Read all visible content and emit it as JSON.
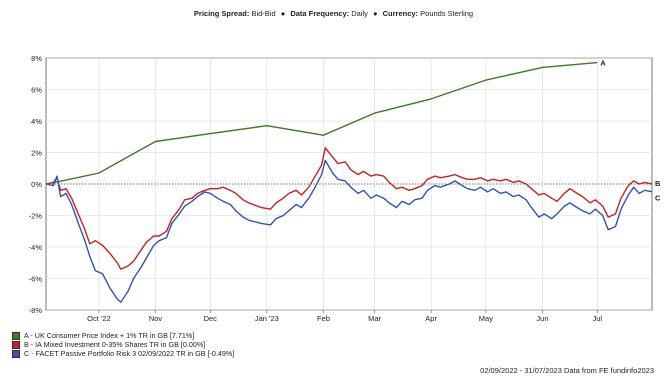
{
  "header": {
    "pricing_label": "Pricing Spread:",
    "pricing_value": "Bid-Bid",
    "frequency_label": "Data Frequency:",
    "frequency_value": "Daily",
    "currency_label": "Currency:",
    "currency_value": "Pounds Sterling",
    "separator": "●"
  },
  "legend": [
    {
      "label": "A - UK Consumer Price Index + 1% TR in GB [7.71%]",
      "color": "#3a7d1f"
    },
    {
      "label": "B - IA Mixed Investment 0-35% Shares TR in GB [0.00%]",
      "color": "#cc1f1f"
    },
    {
      "label": "C - FACET Passive Portfolio Risk 3 02/09/2022 TR in GB [-0.49%]",
      "color": "#2e55b5"
    }
  ],
  "footer": "02/09/2022 - 31/07/2023 Data from FE fundinfo2023",
  "chart_data": {
    "type": "line",
    "x_range": [
      "2022-09-02",
      "2023-07-31"
    ],
    "ylim": [
      -8,
      8
    ],
    "y_ticks": [
      "-8%",
      "-6%",
      "-4%",
      "-2%",
      "0%",
      "2%",
      "4%",
      "6%",
      "8%"
    ],
    "y_tick_values": [
      -8,
      -6,
      -4,
      -2,
      0,
      2,
      4,
      6,
      8
    ],
    "x_ticks": [
      {
        "label": "Oct '22",
        "date": "2022-10-01"
      },
      {
        "label": "Nov",
        "date": "2022-11-01"
      },
      {
        "label": "Dec",
        "date": "2022-12-01"
      },
      {
        "label": "Jan '23",
        "date": "2023-01-01"
      },
      {
        "label": "Feb",
        "date": "2023-02-01"
      },
      {
        "label": "Mar",
        "date": "2023-03-01"
      },
      {
        "label": "Apr",
        "date": "2023-04-01"
      },
      {
        "label": "May",
        "date": "2023-05-01"
      },
      {
        "label": "Jun",
        "date": "2023-06-01"
      },
      {
        "label": "Jul",
        "date": "2023-07-01"
      }
    ],
    "grid": true,
    "zero_line": "dotted",
    "series": [
      {
        "name": "A",
        "color": "#3a7d1f",
        "points": [
          [
            "2022-09-02",
            0.0
          ],
          [
            "2022-09-15",
            0.3
          ],
          [
            "2022-10-01",
            0.7
          ],
          [
            "2022-11-01",
            2.7
          ],
          [
            "2022-12-01",
            3.2
          ],
          [
            "2023-01-01",
            3.7
          ],
          [
            "2023-02-01",
            3.1
          ],
          [
            "2023-03-01",
            4.5
          ],
          [
            "2023-04-01",
            5.4
          ],
          [
            "2023-05-01",
            6.6
          ],
          [
            "2023-06-01",
            7.4
          ],
          [
            "2023-07-01",
            7.71
          ]
        ]
      },
      {
        "name": "B",
        "color": "#cc1f1f",
        "points": [
          [
            "2022-09-02",
            0.0
          ],
          [
            "2022-09-06",
            0.1
          ],
          [
            "2022-09-08",
            0.4
          ],
          [
            "2022-09-10",
            -0.4
          ],
          [
            "2022-09-13",
            -0.3
          ],
          [
            "2022-09-16",
            -0.9
          ],
          [
            "2022-09-20",
            -2.0
          ],
          [
            "2022-09-23",
            -2.8
          ],
          [
            "2022-09-26",
            -3.8
          ],
          [
            "2022-09-29",
            -3.6
          ],
          [
            "2022-10-03",
            -3.9
          ],
          [
            "2022-10-07",
            -4.4
          ],
          [
            "2022-10-11",
            -5.0
          ],
          [
            "2022-10-13",
            -5.4
          ],
          [
            "2022-10-17",
            -5.2
          ],
          [
            "2022-10-20",
            -4.9
          ],
          [
            "2022-10-24",
            -4.2
          ],
          [
            "2022-10-27",
            -3.7
          ],
          [
            "2022-10-31",
            -3.3
          ],
          [
            "2022-11-03",
            -3.3
          ],
          [
            "2022-11-07",
            -3.0
          ],
          [
            "2022-11-10",
            -2.2
          ],
          [
            "2022-11-14",
            -1.6
          ],
          [
            "2022-11-17",
            -1.0
          ],
          [
            "2022-11-21",
            -0.9
          ],
          [
            "2022-11-24",
            -0.6
          ],
          [
            "2022-11-28",
            -0.4
          ],
          [
            "2022-12-01",
            -0.3
          ],
          [
            "2022-12-05",
            -0.3
          ],
          [
            "2022-12-08",
            -0.2
          ],
          [
            "2022-12-12",
            -0.4
          ],
          [
            "2022-12-15",
            -0.6
          ],
          [
            "2022-12-19",
            -1.0
          ],
          [
            "2022-12-22",
            -1.2
          ],
          [
            "2022-12-29",
            -1.5
          ],
          [
            "2023-01-03",
            -1.6
          ],
          [
            "2023-01-06",
            -1.2
          ],
          [
            "2023-01-10",
            -0.9
          ],
          [
            "2023-01-13",
            -0.6
          ],
          [
            "2023-01-17",
            -0.4
          ],
          [
            "2023-01-20",
            -0.7
          ],
          [
            "2023-01-24",
            -0.2
          ],
          [
            "2023-01-27",
            0.4
          ],
          [
            "2023-01-31",
            1.2
          ],
          [
            "2023-02-02",
            2.3
          ],
          [
            "2023-02-06",
            1.7
          ],
          [
            "2023-02-09",
            1.3
          ],
          [
            "2023-02-13",
            1.4
          ],
          [
            "2023-02-16",
            0.9
          ],
          [
            "2023-02-20",
            0.6
          ],
          [
            "2023-02-23",
            0.8
          ],
          [
            "2023-02-27",
            0.5
          ],
          [
            "2023-03-02",
            0.6
          ],
          [
            "2023-03-06",
            0.5
          ],
          [
            "2023-03-09",
            0.1
          ],
          [
            "2023-03-13",
            -0.3
          ],
          [
            "2023-03-16",
            -0.2
          ],
          [
            "2023-03-20",
            -0.4
          ],
          [
            "2023-03-23",
            -0.3
          ],
          [
            "2023-03-27",
            -0.1
          ],
          [
            "2023-03-30",
            0.3
          ],
          [
            "2023-04-03",
            0.5
          ],
          [
            "2023-04-06",
            0.4
          ],
          [
            "2023-04-11",
            0.5
          ],
          [
            "2023-04-14",
            0.6
          ],
          [
            "2023-04-18",
            0.4
          ],
          [
            "2023-04-21",
            0.3
          ],
          [
            "2023-04-25",
            0.3
          ],
          [
            "2023-04-28",
            0.4
          ],
          [
            "2023-05-02",
            0.2
          ],
          [
            "2023-05-05",
            0.3
          ],
          [
            "2023-05-09",
            0.2
          ],
          [
            "2023-05-12",
            0.3
          ],
          [
            "2023-05-16",
            0.1
          ],
          [
            "2023-05-19",
            0.2
          ],
          [
            "2023-05-23",
            0.0
          ],
          [
            "2023-05-26",
            -0.3
          ],
          [
            "2023-05-30",
            -0.7
          ],
          [
            "2023-06-02",
            -0.6
          ],
          [
            "2023-06-06",
            -0.9
          ],
          [
            "2023-06-09",
            -1.1
          ],
          [
            "2023-06-13",
            -0.6
          ],
          [
            "2023-06-16",
            -0.3
          ],
          [
            "2023-06-20",
            -0.6
          ],
          [
            "2023-06-23",
            -0.8
          ],
          [
            "2023-06-27",
            -1.2
          ],
          [
            "2023-06-30",
            -1.0
          ],
          [
            "2023-07-04",
            -1.4
          ],
          [
            "2023-07-07",
            -2.1
          ],
          [
            "2023-07-11",
            -1.9
          ],
          [
            "2023-07-14",
            -0.9
          ],
          [
            "2023-07-18",
            -0.1
          ],
          [
            "2023-07-21",
            0.2
          ],
          [
            "2023-07-24",
            0.0
          ],
          [
            "2023-07-27",
            0.1
          ],
          [
            "2023-07-31",
            0.0
          ]
        ]
      },
      {
        "name": "C",
        "color": "#2e55b5",
        "points": [
          [
            "2022-09-02",
            0.0
          ],
          [
            "2022-09-06",
            -0.1
          ],
          [
            "2022-09-08",
            0.5
          ],
          [
            "2022-09-10",
            -0.8
          ],
          [
            "2022-09-13",
            -0.6
          ],
          [
            "2022-09-16",
            -1.3
          ],
          [
            "2022-09-20",
            -2.6
          ],
          [
            "2022-09-23",
            -3.5
          ],
          [
            "2022-09-26",
            -4.6
          ],
          [
            "2022-09-29",
            -5.5
          ],
          [
            "2022-10-03",
            -5.7
          ],
          [
            "2022-10-07",
            -6.6
          ],
          [
            "2022-10-11",
            -7.3
          ],
          [
            "2022-10-13",
            -7.5
          ],
          [
            "2022-10-17",
            -6.8
          ],
          [
            "2022-10-20",
            -6.0
          ],
          [
            "2022-10-24",
            -5.3
          ],
          [
            "2022-10-27",
            -4.7
          ],
          [
            "2022-10-31",
            -3.9
          ],
          [
            "2022-11-03",
            -3.6
          ],
          [
            "2022-11-07",
            -3.4
          ],
          [
            "2022-11-10",
            -2.5
          ],
          [
            "2022-11-14",
            -1.9
          ],
          [
            "2022-11-17",
            -1.4
          ],
          [
            "2022-11-21",
            -1.1
          ],
          [
            "2022-11-24",
            -0.8
          ],
          [
            "2022-11-28",
            -0.5
          ],
          [
            "2022-12-01",
            -0.6
          ],
          [
            "2022-12-05",
            -0.9
          ],
          [
            "2022-12-08",
            -1.1
          ],
          [
            "2022-12-12",
            -1.3
          ],
          [
            "2022-12-15",
            -1.7
          ],
          [
            "2022-12-19",
            -2.1
          ],
          [
            "2022-12-22",
            -2.3
          ],
          [
            "2022-12-29",
            -2.5
          ],
          [
            "2023-01-03",
            -2.6
          ],
          [
            "2023-01-06",
            -2.2
          ],
          [
            "2023-01-10",
            -2.0
          ],
          [
            "2023-01-13",
            -1.7
          ],
          [
            "2023-01-17",
            -1.3
          ],
          [
            "2023-01-20",
            -1.5
          ],
          [
            "2023-01-24",
            -0.9
          ],
          [
            "2023-01-27",
            -0.3
          ],
          [
            "2023-01-31",
            0.6
          ],
          [
            "2023-02-02",
            1.5
          ],
          [
            "2023-02-06",
            0.7
          ],
          [
            "2023-02-09",
            0.3
          ],
          [
            "2023-02-13",
            0.2
          ],
          [
            "2023-02-16",
            -0.2
          ],
          [
            "2023-02-20",
            -0.6
          ],
          [
            "2023-02-23",
            -0.4
          ],
          [
            "2023-02-27",
            -0.9
          ],
          [
            "2023-03-02",
            -0.7
          ],
          [
            "2023-03-06",
            -0.9
          ],
          [
            "2023-03-09",
            -1.2
          ],
          [
            "2023-03-13",
            -1.5
          ],
          [
            "2023-03-16",
            -1.1
          ],
          [
            "2023-03-20",
            -1.3
          ],
          [
            "2023-03-23",
            -1.0
          ],
          [
            "2023-03-27",
            -0.9
          ],
          [
            "2023-03-30",
            -0.4
          ],
          [
            "2023-04-03",
            -0.1
          ],
          [
            "2023-04-06",
            -0.2
          ],
          [
            "2023-04-11",
            0.0
          ],
          [
            "2023-04-14",
            0.2
          ],
          [
            "2023-04-18",
            -0.1
          ],
          [
            "2023-04-21",
            -0.3
          ],
          [
            "2023-04-25",
            -0.4
          ],
          [
            "2023-04-28",
            -0.2
          ],
          [
            "2023-05-02",
            -0.5
          ],
          [
            "2023-05-05",
            -0.3
          ],
          [
            "2023-05-09",
            -0.6
          ],
          [
            "2023-05-12",
            -0.5
          ],
          [
            "2023-05-16",
            -0.8
          ],
          [
            "2023-05-19",
            -0.7
          ],
          [
            "2023-05-23",
            -1.0
          ],
          [
            "2023-05-26",
            -1.5
          ],
          [
            "2023-05-30",
            -2.1
          ],
          [
            "2023-06-02",
            -1.9
          ],
          [
            "2023-06-06",
            -2.2
          ],
          [
            "2023-06-09",
            -1.9
          ],
          [
            "2023-06-13",
            -1.4
          ],
          [
            "2023-06-16",
            -1.2
          ],
          [
            "2023-06-20",
            -1.5
          ],
          [
            "2023-06-23",
            -1.7
          ],
          [
            "2023-06-27",
            -1.9
          ],
          [
            "2023-06-30",
            -1.6
          ],
          [
            "2023-07-04",
            -2.0
          ],
          [
            "2023-07-07",
            -2.9
          ],
          [
            "2023-07-11",
            -2.7
          ],
          [
            "2023-07-14",
            -1.6
          ],
          [
            "2023-07-18",
            -0.7
          ],
          [
            "2023-07-21",
            -0.2
          ],
          [
            "2023-07-24",
            -0.6
          ],
          [
            "2023-07-27",
            -0.4
          ],
          [
            "2023-07-31",
            -0.49
          ]
        ]
      }
    ]
  }
}
